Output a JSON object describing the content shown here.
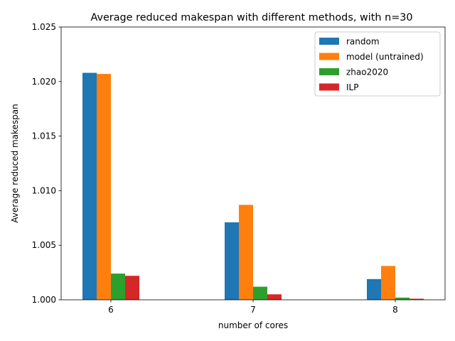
{
  "chart_data": {
    "type": "bar",
    "title": "Average reduced makespan with different methods, with n=30",
    "xlabel": "number of cores",
    "ylabel": "Average reduced makespan",
    "categories": [
      "6",
      "7",
      "8"
    ],
    "ylim": [
      1.0,
      1.025
    ],
    "yticks": [
      "1.000",
      "1.005",
      "1.010",
      "1.015",
      "1.020",
      "1.025"
    ],
    "grid": false,
    "legend_position": "top-right",
    "series": [
      {
        "name": "random",
        "color": "#1f77b4",
        "values": [
          1.0208,
          1.0071,
          1.0019
        ]
      },
      {
        "name": "model (untrained)",
        "color": "#ff7f0e",
        "values": [
          1.0207,
          1.0087,
          1.0031
        ]
      },
      {
        "name": "zhao2020",
        "color": "#2ca02c",
        "values": [
          1.0024,
          1.0012,
          1.0002
        ]
      },
      {
        "name": "ILP",
        "color": "#d62728",
        "values": [
          1.0022,
          1.0005,
          1.0001
        ]
      }
    ]
  }
}
